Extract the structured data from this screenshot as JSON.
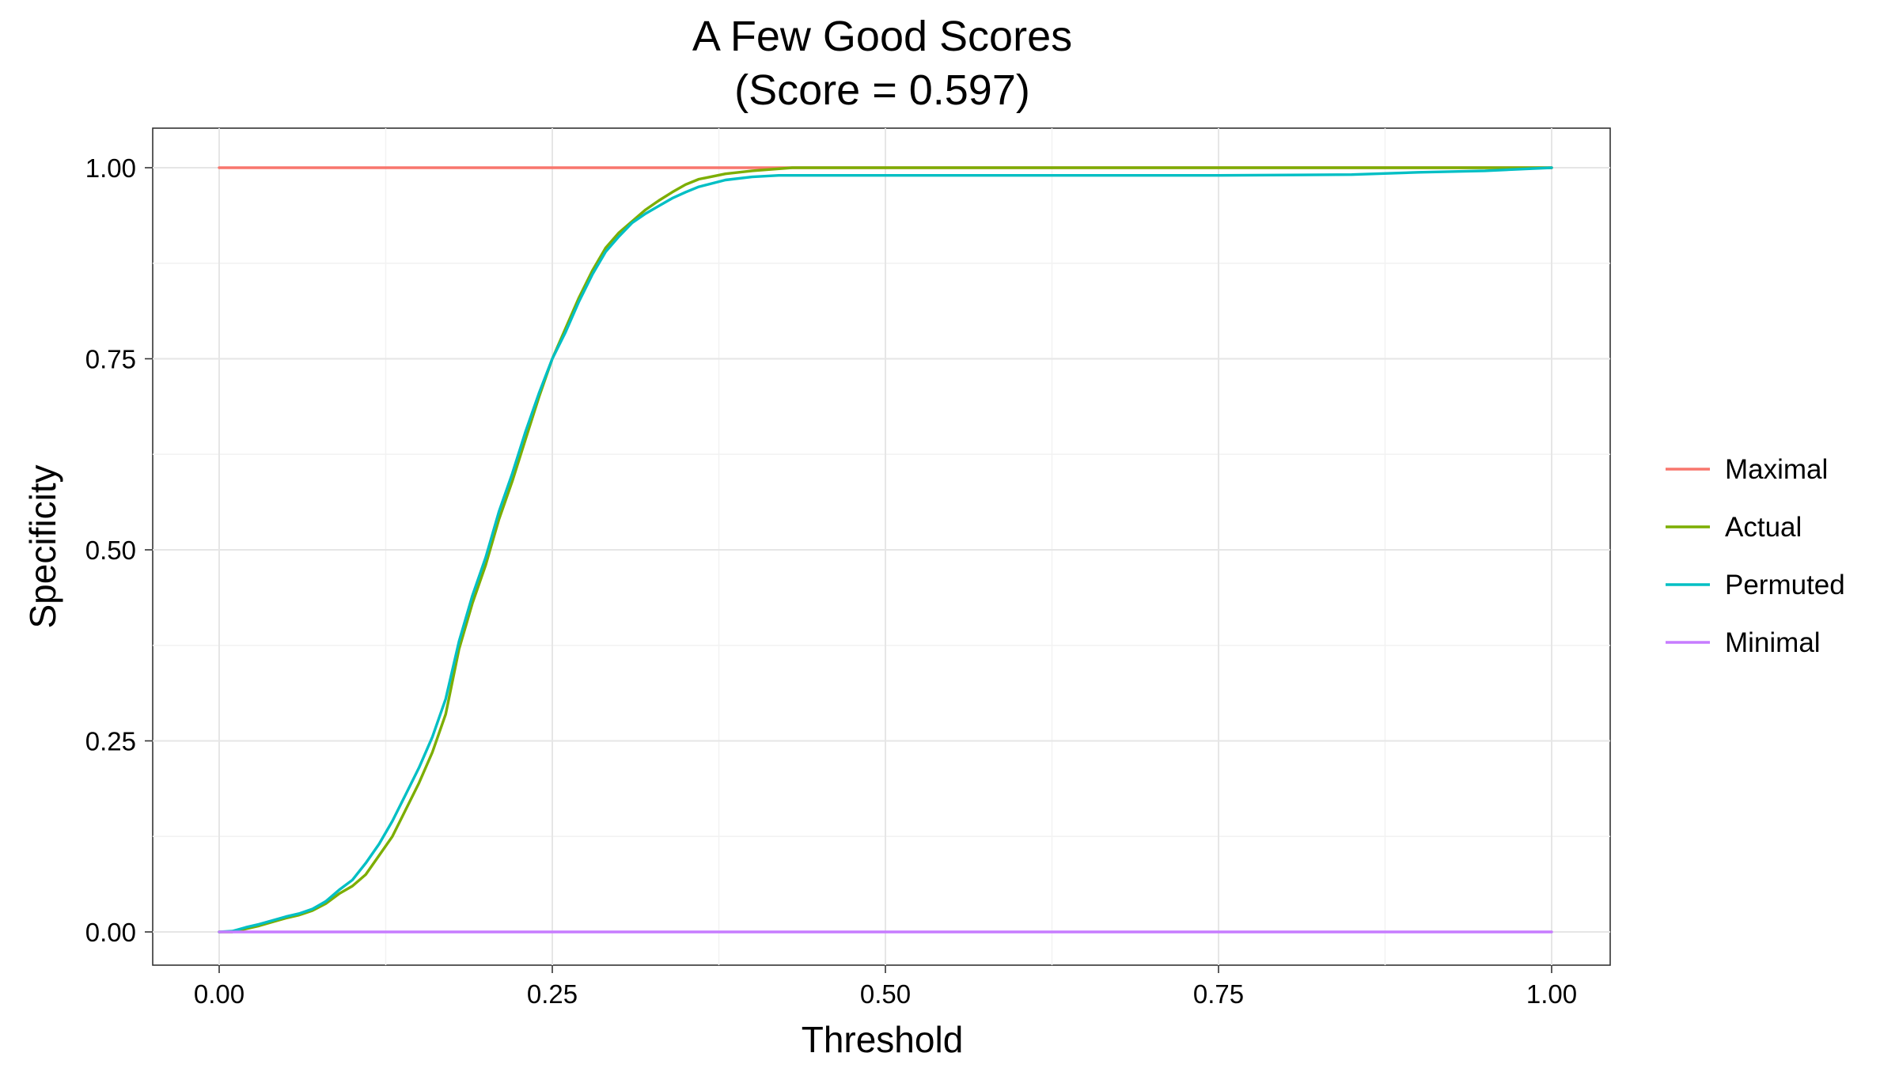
{
  "chart_data": {
    "type": "line",
    "title": "A Few Good Scores",
    "subtitle": "(Score = 0.597)",
    "xlabel": "Threshold",
    "ylabel": "Specificity",
    "xlim": [
      0,
      1
    ],
    "ylim": [
      0,
      1
    ],
    "x_ticks": [
      "0.00",
      "0.25",
      "0.50",
      "0.75",
      "1.00"
    ],
    "y_ticks": [
      "0.00",
      "0.25",
      "0.50",
      "0.75",
      "1.00"
    ],
    "grid": true,
    "legend_position": "right",
    "series": [
      {
        "name": "Maximal",
        "color": "#F8766D",
        "points": [
          [
            0,
            1
          ],
          [
            1,
            1
          ]
        ]
      },
      {
        "name": "Actual",
        "color": "#7CAE00",
        "points": [
          [
            0,
            0
          ],
          [
            0.01,
            0.0
          ],
          [
            0.02,
            0.004
          ],
          [
            0.03,
            0.008
          ],
          [
            0.04,
            0.013
          ],
          [
            0.05,
            0.018
          ],
          [
            0.06,
            0.022
          ],
          [
            0.07,
            0.028
          ],
          [
            0.08,
            0.037
          ],
          [
            0.09,
            0.05
          ],
          [
            0.1,
            0.06
          ],
          [
            0.11,
            0.075
          ],
          [
            0.12,
            0.1
          ],
          [
            0.13,
            0.125
          ],
          [
            0.14,
            0.16
          ],
          [
            0.15,
            0.195
          ],
          [
            0.16,
            0.235
          ],
          [
            0.17,
            0.285
          ],
          [
            0.18,
            0.37
          ],
          [
            0.19,
            0.43
          ],
          [
            0.2,
            0.48
          ],
          [
            0.21,
            0.54
          ],
          [
            0.22,
            0.59
          ],
          [
            0.23,
            0.645
          ],
          [
            0.24,
            0.7
          ],
          [
            0.25,
            0.75
          ],
          [
            0.26,
            0.79
          ],
          [
            0.27,
            0.83
          ],
          [
            0.28,
            0.865
          ],
          [
            0.29,
            0.895
          ],
          [
            0.3,
            0.915
          ],
          [
            0.31,
            0.93
          ],
          [
            0.32,
            0.945
          ],
          [
            0.33,
            0.957
          ],
          [
            0.34,
            0.968
          ],
          [
            0.35,
            0.978
          ],
          [
            0.36,
            0.985
          ],
          [
            0.38,
            0.992
          ],
          [
            0.4,
            0.996
          ],
          [
            0.43,
            1.0
          ],
          [
            0.5,
            1.0
          ],
          [
            0.75,
            1.0
          ],
          [
            1.0,
            1.0
          ]
        ]
      },
      {
        "name": "Permuted",
        "color": "#00BFC4",
        "points": [
          [
            0,
            0
          ],
          [
            0.01,
            0.001
          ],
          [
            0.02,
            0.006
          ],
          [
            0.03,
            0.01
          ],
          [
            0.04,
            0.015
          ],
          [
            0.05,
            0.02
          ],
          [
            0.06,
            0.024
          ],
          [
            0.07,
            0.03
          ],
          [
            0.08,
            0.04
          ],
          [
            0.09,
            0.055
          ],
          [
            0.1,
            0.068
          ],
          [
            0.11,
            0.09
          ],
          [
            0.12,
            0.115
          ],
          [
            0.13,
            0.145
          ],
          [
            0.14,
            0.18
          ],
          [
            0.15,
            0.215
          ],
          [
            0.16,
            0.255
          ],
          [
            0.17,
            0.305
          ],
          [
            0.18,
            0.38
          ],
          [
            0.19,
            0.44
          ],
          [
            0.2,
            0.49
          ],
          [
            0.21,
            0.55
          ],
          [
            0.22,
            0.6
          ],
          [
            0.23,
            0.655
          ],
          [
            0.24,
            0.705
          ],
          [
            0.25,
            0.75
          ],
          [
            0.26,
            0.785
          ],
          [
            0.27,
            0.825
          ],
          [
            0.28,
            0.86
          ],
          [
            0.29,
            0.89
          ],
          [
            0.3,
            0.91
          ],
          [
            0.31,
            0.928
          ],
          [
            0.32,
            0.94
          ],
          [
            0.33,
            0.95
          ],
          [
            0.34,
            0.96
          ],
          [
            0.35,
            0.968
          ],
          [
            0.36,
            0.975
          ],
          [
            0.38,
            0.984
          ],
          [
            0.4,
            0.988
          ],
          [
            0.42,
            0.99
          ],
          [
            0.5,
            0.99
          ],
          [
            0.75,
            0.99
          ],
          [
            0.85,
            0.991
          ],
          [
            0.9,
            0.994
          ],
          [
            0.95,
            0.996
          ],
          [
            1.0,
            1.0
          ]
        ]
      },
      {
        "name": "Minimal",
        "color": "#C77CFF",
        "points": [
          [
            0,
            0
          ],
          [
            1,
            0
          ]
        ]
      }
    ]
  }
}
